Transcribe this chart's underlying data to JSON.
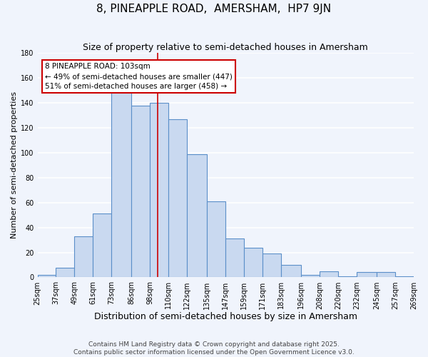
{
  "title": "8, PINEAPPLE ROAD,  AMERSHAM,  HP7 9JN",
  "subtitle": "Size of property relative to semi-detached houses in Amersham",
  "xlabel": "Distribution of semi-detached houses by size in Amersham",
  "ylabel": "Number of semi-detached properties",
  "bar_left_edges": [
    25,
    37,
    49,
    61,
    73,
    86,
    98,
    110,
    122,
    135,
    147,
    159,
    171,
    183,
    196,
    208,
    220,
    232,
    245,
    257
  ],
  "bar_widths": [
    12,
    12,
    12,
    12,
    13,
    12,
    12,
    12,
    13,
    12,
    12,
    12,
    12,
    13,
    12,
    12,
    12,
    13,
    12,
    12
  ],
  "bar_values": [
    2,
    8,
    33,
    51,
    150,
    138,
    140,
    127,
    99,
    61,
    31,
    24,
    19,
    10,
    2,
    5,
    1,
    4,
    4,
    1
  ],
  "tick_labels": [
    "25sqm",
    "37sqm",
    "49sqm",
    "61sqm",
    "73sqm",
    "86sqm",
    "98sqm",
    "110sqm",
    "122sqm",
    "135sqm",
    "147sqm",
    "159sqm",
    "171sqm",
    "183sqm",
    "196sqm",
    "208sqm",
    "220sqm",
    "232sqm",
    "245sqm",
    "257sqm",
    "269sqm"
  ],
  "tick_positions": [
    25,
    37,
    49,
    61,
    73,
    86,
    98,
    110,
    122,
    135,
    147,
    159,
    171,
    183,
    196,
    208,
    220,
    232,
    245,
    257,
    269
  ],
  "bar_color": "#c9d9f0",
  "bar_edge_color": "#5b8fc9",
  "background_color": "#f0f4fc",
  "grid_color": "#ffffff",
  "vline_x": 103,
  "vline_color": "#cc0000",
  "ylim": [
    0,
    180
  ],
  "yticks": [
    0,
    20,
    40,
    60,
    80,
    100,
    120,
    140,
    160,
    180
  ],
  "annotation_title": "8 PINEAPPLE ROAD: 103sqm",
  "annotation_line1": "← 49% of semi-detached houses are smaller (447)",
  "annotation_line2": "51% of semi-detached houses are larger (458) →",
  "annotation_box_color": "#ffffff",
  "annotation_box_edge": "#cc0000",
  "footnote1": "Contains HM Land Registry data © Crown copyright and database right 2025.",
  "footnote2": "Contains public sector information licensed under the Open Government Licence v3.0.",
  "title_fontsize": 11,
  "subtitle_fontsize": 9,
  "xlabel_fontsize": 9,
  "ylabel_fontsize": 8,
  "tick_fontsize": 7,
  "annotation_fontsize": 7.5,
  "footnote_fontsize": 6.5
}
